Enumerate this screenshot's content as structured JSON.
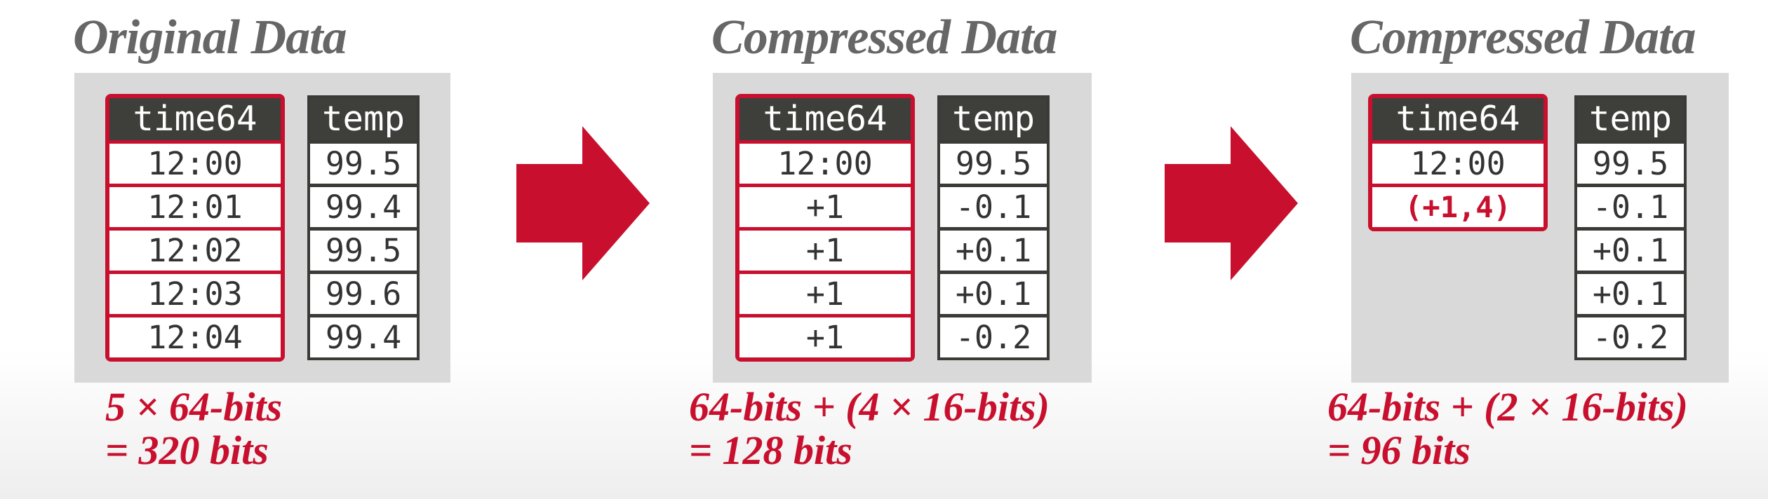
{
  "panels": [
    {
      "heading": "Original Data",
      "time_header": "time64",
      "time_values": [
        "12:00",
        "12:01",
        "12:02",
        "12:03",
        "12:04"
      ],
      "temp_header": "temp",
      "temp_values": [
        "99.5",
        "99.4",
        "99.5",
        "99.6",
        "99.4"
      ],
      "caption_line1": "5 × 64-bits",
      "caption_line2": "= 320 bits"
    },
    {
      "heading": "Compressed Data",
      "time_header": "time64",
      "time_values": [
        "12:00",
        "+1",
        "+1",
        "+1",
        "+1"
      ],
      "temp_header": "temp",
      "temp_values": [
        "99.5",
        "-0.1",
        "+0.1",
        "+0.1",
        "-0.2"
      ],
      "caption_line1": "64-bits + (4 × 16-bits)",
      "caption_line2": "= 128 bits"
    },
    {
      "heading": "Compressed Data",
      "time_header": "time64",
      "time_values": [
        "12:00",
        "(+1,4)"
      ],
      "temp_header": "temp",
      "temp_values": [
        "99.5",
        "-0.1",
        "+0.1",
        "+0.1",
        "-0.2"
      ],
      "caption_line1": "64-bits + (2 × 16-bits)",
      "caption_line2": "= 96 bits"
    }
  ],
  "colors": {
    "accent_red": "#c8102e",
    "header_dark": "#3e3e3a",
    "heading_gray": "#666666",
    "panel_bg": "#d9d9d9"
  },
  "icons": [
    "right-arrow-icon",
    "right-arrow-icon"
  ]
}
